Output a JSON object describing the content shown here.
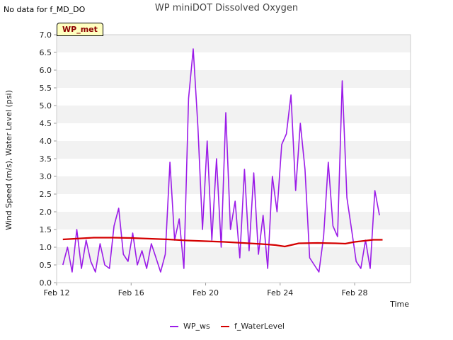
{
  "header": {
    "no_data_note": "No data for f_MD_DO",
    "site_badge": "WP_met"
  },
  "chart_data": {
    "type": "line",
    "title": "WP miniDOT Dissolved Oxygen",
    "xlabel": "Time",
    "ylabel": "Wind Speed (m/s), Water Level (psi)",
    "xlim": [
      "2024-02-12",
      "2024-03-02"
    ],
    "ylim": [
      0,
      7
    ],
    "x_ticks": [
      "Feb 12",
      "Feb 16",
      "Feb 20",
      "Feb 24",
      "Feb 28"
    ],
    "y_ticks": [
      "0.0",
      "0.5",
      "1.0",
      "1.5",
      "2.0",
      "2.5",
      "3.0",
      "3.5",
      "4.0",
      "4.5",
      "5.0",
      "5.5",
      "6.0",
      "6.5",
      "7.0"
    ],
    "grid": "horizontal bands",
    "legend_position": "bottom",
    "series": [
      {
        "name": "WP_ws",
        "color": "#9b1ce8",
        "x": [
          "2024-02-12T08:00",
          "2024-02-12T14:00",
          "2024-02-12T20:00",
          "2024-02-13T02:00",
          "2024-02-13T08:00",
          "2024-02-13T14:00",
          "2024-02-13T20:00",
          "2024-02-14T02:00",
          "2024-02-14T08:00",
          "2024-02-14T14:00",
          "2024-02-14T20:00",
          "2024-02-15T02:00",
          "2024-02-15T08:00",
          "2024-02-15T14:00",
          "2024-02-15T20:00",
          "2024-02-16T02:00",
          "2024-02-16T08:00",
          "2024-02-16T14:00",
          "2024-02-16T20:00",
          "2024-02-17T02:00",
          "2024-02-17T08:00",
          "2024-02-17T14:00",
          "2024-02-17T20:00",
          "2024-02-18T02:00",
          "2024-02-18T08:00",
          "2024-02-18T14:00",
          "2024-02-18T20:00",
          "2024-02-19T02:00",
          "2024-02-19T08:00",
          "2024-02-19T14:00",
          "2024-02-19T20:00",
          "2024-02-20T02:00",
          "2024-02-20T08:00",
          "2024-02-20T14:00",
          "2024-02-20T20:00",
          "2024-02-21T02:00",
          "2024-02-21T08:00",
          "2024-02-21T14:00",
          "2024-02-21T20:00",
          "2024-02-22T02:00",
          "2024-02-22T08:00",
          "2024-02-22T14:00",
          "2024-02-22T20:00",
          "2024-02-23T02:00",
          "2024-02-23T08:00",
          "2024-02-23T14:00",
          "2024-02-23T20:00",
          "2024-02-24T02:00",
          "2024-02-24T08:00",
          "2024-02-24T14:00",
          "2024-02-24T20:00",
          "2024-02-25T02:00",
          "2024-02-25T08:00",
          "2024-02-25T14:00",
          "2024-02-25T20:00",
          "2024-02-26T02:00",
          "2024-02-26T08:00",
          "2024-02-26T14:00",
          "2024-02-26T20:00",
          "2024-02-27T02:00",
          "2024-02-27T08:00",
          "2024-02-27T14:00",
          "2024-02-27T20:00",
          "2024-02-28T02:00",
          "2024-02-28T08:00",
          "2024-02-28T14:00",
          "2024-02-28T20:00",
          "2024-02-29T02:00",
          "2024-02-29T08:00"
        ],
        "values": [
          0.5,
          1.0,
          0.3,
          1.5,
          0.4,
          1.2,
          0.6,
          0.3,
          1.1,
          0.5,
          0.4,
          1.6,
          2.1,
          0.8,
          0.6,
          1.4,
          0.5,
          0.9,
          0.4,
          1.1,
          0.7,
          0.3,
          0.8,
          3.4,
          1.2,
          1.8,
          0.4,
          5.2,
          6.6,
          4.4,
          1.5,
          4.0,
          1.2,
          3.5,
          1.0,
          4.8,
          1.5,
          2.3,
          0.7,
          3.2,
          0.9,
          3.1,
          0.8,
          1.9,
          0.4,
          3.0,
          2.0,
          3.9,
          4.2,
          5.3,
          2.6,
          4.5,
          3.2,
          0.7,
          0.5,
          0.3,
          1.3,
          3.4,
          1.6,
          1.3,
          5.7,
          2.4,
          1.5,
          0.6,
          0.4,
          1.2,
          0.4,
          2.6,
          1.9
        ]
      },
      {
        "name": "f_WaterLevel",
        "color": "#d40000",
        "x": [
          "2024-02-12T08:00",
          "2024-02-13T00:00",
          "2024-02-14T00:00",
          "2024-02-15T00:00",
          "2024-02-16T00:00",
          "2024-02-17T00:00",
          "2024-02-18T00:00",
          "2024-02-19T00:00",
          "2024-02-20T00:00",
          "2024-02-21T00:00",
          "2024-02-22T00:00",
          "2024-02-23T00:00",
          "2024-02-23T18:00",
          "2024-02-24T06:00",
          "2024-02-25T00:00",
          "2024-02-26T00:00",
          "2024-02-27T00:00",
          "2024-02-27T12:00",
          "2024-02-28T00:00",
          "2024-02-29T00:00",
          "2024-02-29T12:00"
        ],
        "values": [
          1.22,
          1.24,
          1.27,
          1.27,
          1.26,
          1.24,
          1.22,
          1.19,
          1.17,
          1.15,
          1.12,
          1.09,
          1.06,
          1.02,
          1.11,
          1.12,
          1.11,
          1.1,
          1.15,
          1.21,
          1.21
        ]
      }
    ]
  }
}
